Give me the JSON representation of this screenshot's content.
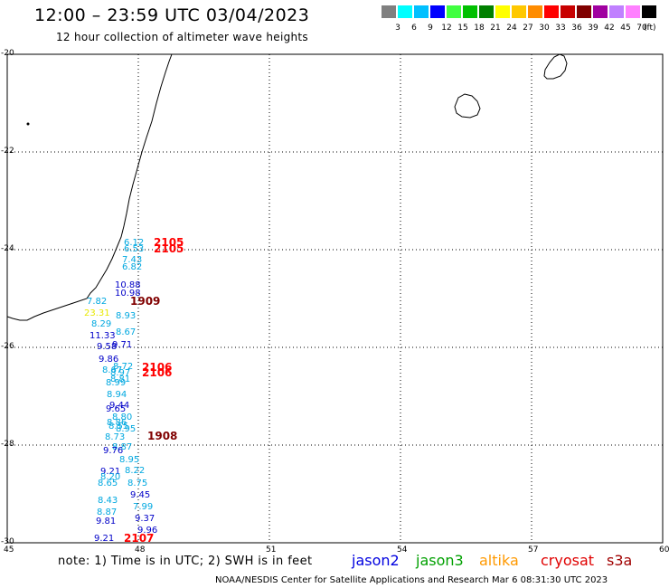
{
  "header": {
    "title": "12:00 – 23:59 UTC 03/04/2023",
    "subtitle": "12 hour collection of altimeter wave heights"
  },
  "legend": {
    "colors": [
      "#808080",
      "#00ffff",
      "#00c0ff",
      "#0000ff",
      "#40ff40",
      "#00c000",
      "#008000",
      "#ffff00",
      "#ffc800",
      "#ff8c00",
      "#ff0000",
      "#c80000",
      "#800000",
      "#a000a0",
      "#c080ff",
      "#ff80ff",
      "#000000"
    ],
    "labels": [
      "3",
      "6",
      "9",
      "12",
      "15",
      "18",
      "21",
      "24",
      "27",
      "30",
      "33",
      "36",
      "39",
      "42",
      "45",
      "70"
    ],
    "unit": "(ft)"
  },
  "map": {
    "lat_labels": [
      "-20",
      "-22",
      "-24",
      "-26",
      "-28",
      "-30"
    ],
    "lon_labels": [
      "45",
      "48",
      "51",
      "54",
      "57",
      "60"
    ],
    "observations": [
      {
        "text": "6.12",
        "color": "#00a8e0"
      },
      {
        "text": "6.53",
        "color": "#00a8e0"
      },
      {
        "text": "7.43",
        "color": "#00a8e0"
      },
      {
        "text": "6.82",
        "color": "#00a8e0"
      },
      {
        "text": "10.88",
        "color": "#0000c8"
      },
      {
        "text": "10.98",
        "color": "#0000c8"
      },
      {
        "text": "7.82",
        "color": "#00a8e0"
      },
      {
        "text": "23.31",
        "color": "#e8e800"
      },
      {
        "text": "8.93",
        "color": "#00a8e0"
      },
      {
        "text": "8.29",
        "color": "#00a8e0"
      },
      {
        "text": "11.33",
        "color": "#0000c8"
      },
      {
        "text": "8.67",
        "color": "#00a8e0"
      },
      {
        "text": "9.58",
        "color": "#0000c8"
      },
      {
        "text": "9.71",
        "color": "#0000c8"
      },
      {
        "text": "9.86",
        "color": "#0000c8"
      },
      {
        "text": "8.72",
        "color": "#00a8e0"
      },
      {
        "text": "8.67",
        "color": "#00a8e0"
      },
      {
        "text": "8.97",
        "color": "#00a8e0"
      },
      {
        "text": "8.81",
        "color": "#00a8e0"
      },
      {
        "text": "8.99",
        "color": "#00a8e0"
      },
      {
        "text": "8.94",
        "color": "#00a8e0"
      },
      {
        "text": "9.44",
        "color": "#0000c8"
      },
      {
        "text": "9.65",
        "color": "#0000c8"
      },
      {
        "text": "8.80",
        "color": "#00a8e0"
      },
      {
        "text": "8.86",
        "color": "#00a8e0"
      },
      {
        "text": "8.55",
        "color": "#00a8e0"
      },
      {
        "text": "8.95",
        "color": "#00a8e0"
      },
      {
        "text": "8.73",
        "color": "#00a8e0"
      },
      {
        "text": "8.87",
        "color": "#00a8e0"
      },
      {
        "text": "9.76",
        "color": "#0000c8"
      },
      {
        "text": "8.95",
        "color": "#00a8e0"
      },
      {
        "text": "9.21",
        "color": "#0000c8"
      },
      {
        "text": "8.22",
        "color": "#00a8e0"
      },
      {
        "text": "8.20",
        "color": "#00a8e0"
      },
      {
        "text": "8.65",
        "color": "#00a8e0"
      },
      {
        "text": "8.75",
        "color": "#00a8e0"
      },
      {
        "text": "9.45",
        "color": "#0000c8"
      },
      {
        "text": "8.43",
        "color": "#00a8e0"
      },
      {
        "text": "7.99",
        "color": "#00a8e0"
      },
      {
        "text": "8.87",
        "color": "#00a8e0"
      },
      {
        "text": "9.37",
        "color": "#0000c8"
      },
      {
        "text": "9.81",
        "color": "#0000c8"
      },
      {
        "text": "9.96",
        "color": "#0000c8"
      },
      {
        "text": "9.21",
        "color": "#0000c8"
      }
    ],
    "pass_labels": [
      {
        "text": "2105",
        "color": "#ff0000"
      },
      {
        "text": "2105",
        "color": "#ff0000"
      },
      {
        "text": "1909",
        "color": "#800000"
      },
      {
        "text": "2106",
        "color": "#ff0000"
      },
      {
        "text": "2106",
        "color": "#ff0000"
      },
      {
        "text": "1908",
        "color": "#800000"
      },
      {
        "text": "2107",
        "color": "#ff0000"
      }
    ]
  },
  "footer": {
    "note": "note:  1) Time is in UTC;  2) SWH is in feet",
    "satellites": [
      {
        "name": "jason2",
        "color": "#0000e0"
      },
      {
        "name": "jason3",
        "color": "#00a000"
      },
      {
        "name": "altika",
        "color": "#ff9900"
      },
      {
        "name": "cryosat",
        "color": "#e00000"
      },
      {
        "name": "s3a",
        "color": "#a00000"
      }
    ],
    "credit": "NOAA/NESDIS Center for Satellite Applications and Research     Mar  6 08:31:30 UTC 2023"
  }
}
